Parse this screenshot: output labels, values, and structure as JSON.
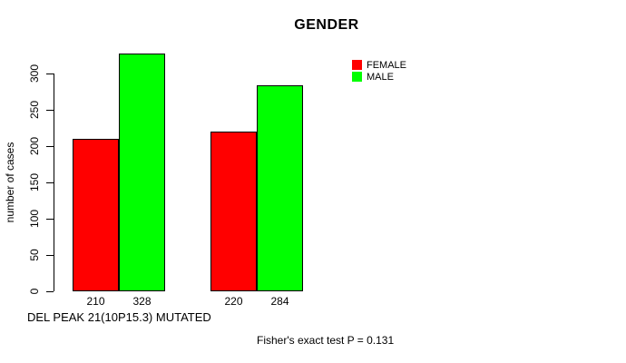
{
  "chart_data": {
    "type": "bar",
    "title": "GENDER",
    "xlabel": "DEL PEAK 21(10P15.3) MUTATED",
    "ylabel": "number of cases",
    "categories": [
      "",
      ""
    ],
    "series": [
      {
        "name": "FEMALE",
        "color": "#FF0000",
        "values": [
          210,
          220
        ]
      },
      {
        "name": "MALE",
        "color": "#00FF00",
        "values": [
          328,
          284
        ]
      }
    ],
    "yticks": [
      0,
      50,
      100,
      150,
      200,
      250,
      300
    ],
    "ylim": [
      0,
      330
    ],
    "grid": false,
    "bar_border_color": "#000000",
    "legend_position": "top-right",
    "annotation": "Fisher's exact test P = 0.131"
  }
}
